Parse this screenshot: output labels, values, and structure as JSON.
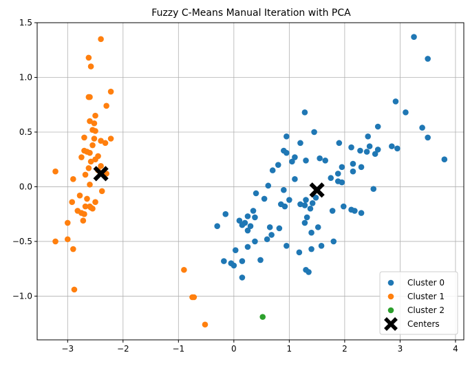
{
  "chart_data": {
    "type": "scatter",
    "title": "Fuzzy C-Means Manual Iteration with PCA",
    "xlabel": "",
    "ylabel": "",
    "xlim": [
      -3.55,
      4.15
    ],
    "ylim": [
      -1.4,
      1.5
    ],
    "xticks": [
      -3,
      -2,
      -1,
      0,
      1,
      2,
      3,
      4
    ],
    "xtick_labels": [
      "−3",
      "−2",
      "−1",
      "0",
      "1",
      "2",
      "3",
      "4"
    ],
    "yticks": [
      -1.0,
      -0.5,
      0.0,
      0.5,
      1.0,
      1.5
    ],
    "ytick_labels": [
      "−1.0",
      "−0.5",
      "0.0",
      "0.5",
      "1.0",
      "1.5"
    ],
    "grid": true,
    "legend_position": "lower-right",
    "series": [
      {
        "name": "Cluster 0",
        "color": "#1f77b4",
        "marker": "circle",
        "points": [
          [
            3.25,
            1.37
          ],
          [
            3.5,
            1.17
          ],
          [
            2.92,
            0.78
          ],
          [
            3.1,
            0.68
          ],
          [
            2.6,
            0.55
          ],
          [
            3.4,
            0.54
          ],
          [
            3.5,
            0.45
          ],
          [
            3.8,
            0.25
          ],
          [
            1.28,
            0.68
          ],
          [
            1.45,
            0.5
          ],
          [
            0.95,
            0.46
          ],
          [
            2.42,
            0.46
          ],
          [
            2.28,
            0.33
          ],
          [
            2.55,
            0.3
          ],
          [
            2.85,
            0.37
          ],
          [
            2.95,
            0.35
          ],
          [
            2.4,
            0.32
          ],
          [
            2.45,
            0.37
          ],
          [
            2.6,
            0.34
          ],
          [
            2.12,
            0.36
          ],
          [
            1.9,
            0.4
          ],
          [
            1.2,
            0.4
          ],
          [
            0.9,
            0.33
          ],
          [
            0.95,
            0.31
          ],
          [
            1.1,
            0.27
          ],
          [
            1.05,
            0.23
          ],
          [
            1.3,
            0.24
          ],
          [
            1.55,
            0.26
          ],
          [
            1.65,
            0.24
          ],
          [
            2.15,
            0.21
          ],
          [
            2.3,
            0.18
          ],
          [
            1.95,
            0.18
          ],
          [
            0.8,
            0.2
          ],
          [
            0.7,
            0.15
          ],
          [
            1.88,
            0.12
          ],
          [
            2.15,
            0.14
          ],
          [
            1.88,
            0.05
          ],
          [
            1.95,
            0.04
          ],
          [
            1.75,
            0.08
          ],
          [
            1.1,
            0.07
          ],
          [
            0.62,
            0.01
          ],
          [
            0.4,
            -0.06
          ],
          [
            0.9,
            -0.03
          ],
          [
            1.5,
            -0.03
          ],
          [
            2.52,
            -0.02
          ],
          [
            1.48,
            -0.1
          ],
          [
            1.3,
            -0.12
          ],
          [
            1.0,
            -0.12
          ],
          [
            0.55,
            -0.11
          ],
          [
            1.42,
            -0.15
          ],
          [
            1.2,
            -0.16
          ],
          [
            1.28,
            -0.17
          ],
          [
            0.85,
            -0.16
          ],
          [
            0.92,
            -0.18
          ],
          [
            1.98,
            -0.18
          ],
          [
            1.78,
            -0.22
          ],
          [
            2.12,
            -0.21
          ],
          [
            2.18,
            -0.22
          ],
          [
            2.3,
            -0.24
          ],
          [
            1.38,
            -0.2
          ],
          [
            1.32,
            -0.28
          ],
          [
            0.35,
            -0.22
          ],
          [
            0.38,
            -0.28
          ],
          [
            0.1,
            -0.31
          ],
          [
            0.25,
            -0.27
          ],
          [
            0.2,
            -0.33
          ],
          [
            0.3,
            -0.36
          ],
          [
            0.15,
            -0.35
          ],
          [
            -0.15,
            -0.25
          ],
          [
            -0.3,
            -0.36
          ],
          [
            0.65,
            -0.37
          ],
          [
            0.82,
            -0.38
          ],
          [
            1.28,
            -0.33
          ],
          [
            1.52,
            -0.37
          ],
          [
            0.25,
            -0.4
          ],
          [
            0.68,
            -0.44
          ],
          [
            1.4,
            -0.42
          ],
          [
            0.6,
            -0.48
          ],
          [
            0.38,
            -0.5
          ],
          [
            1.8,
            -0.5
          ],
          [
            0.95,
            -0.54
          ],
          [
            1.58,
            -0.54
          ],
          [
            0.25,
            -0.55
          ],
          [
            1.4,
            -0.57
          ],
          [
            0.03,
            -0.58
          ],
          [
            1.18,
            -0.6
          ],
          [
            0.48,
            -0.67
          ],
          [
            0.15,
            -0.68
          ],
          [
            -0.18,
            -0.68
          ],
          [
            -0.05,
            -0.7
          ],
          [
            0.0,
            -0.72
          ],
          [
            1.3,
            -0.76
          ],
          [
            1.35,
            -0.78
          ],
          [
            0.15,
            -0.83
          ]
        ]
      },
      {
        "name": "Cluster 1",
        "color": "#ff7f0e",
        "marker": "circle",
        "points": [
          [
            -2.4,
            1.35
          ],
          [
            -2.62,
            1.18
          ],
          [
            -2.58,
            1.1
          ],
          [
            -2.22,
            0.87
          ],
          [
            -2.62,
            0.82
          ],
          [
            -2.6,
            0.82
          ],
          [
            -2.3,
            0.74
          ],
          [
            -2.5,
            0.65
          ],
          [
            -2.6,
            0.6
          ],
          [
            -2.52,
            0.58
          ],
          [
            -2.55,
            0.52
          ],
          [
            -2.5,
            0.51
          ],
          [
            -2.7,
            0.45
          ],
          [
            -2.52,
            0.44
          ],
          [
            -2.4,
            0.42
          ],
          [
            -2.22,
            0.44
          ],
          [
            -2.32,
            0.4
          ],
          [
            -2.55,
            0.38
          ],
          [
            -2.7,
            0.33
          ],
          [
            -2.65,
            0.32
          ],
          [
            -2.6,
            0.31
          ],
          [
            -2.75,
            0.27
          ],
          [
            -2.45,
            0.28
          ],
          [
            -2.5,
            0.25
          ],
          [
            -2.58,
            0.23
          ],
          [
            -2.62,
            0.17
          ],
          [
            -2.4,
            0.19
          ],
          [
            -2.45,
            0.15
          ],
          [
            -2.3,
            0.12
          ],
          [
            -2.68,
            0.11
          ],
          [
            -3.22,
            0.14
          ],
          [
            -2.9,
            0.07
          ],
          [
            -2.6,
            0.02
          ],
          [
            -2.38,
            -0.04
          ],
          [
            -2.65,
            -0.11
          ],
          [
            -2.5,
            -0.14
          ],
          [
            -2.78,
            -0.08
          ],
          [
            -2.92,
            -0.14
          ],
          [
            -2.68,
            -0.18
          ],
          [
            -2.6,
            -0.18
          ],
          [
            -2.55,
            -0.2
          ],
          [
            -2.58,
            -0.19
          ],
          [
            -2.82,
            -0.22
          ],
          [
            -2.75,
            -0.24
          ],
          [
            -2.7,
            -0.25
          ],
          [
            -2.72,
            -0.31
          ],
          [
            -3.0,
            -0.33
          ],
          [
            -3.0,
            -0.48
          ],
          [
            -3.22,
            -0.5
          ],
          [
            -2.9,
            -0.57
          ],
          [
            -0.9,
            -0.76
          ],
          [
            -2.88,
            -0.94
          ],
          [
            -0.75,
            -1.01
          ],
          [
            -0.72,
            -1.01
          ],
          [
            -0.52,
            -1.26
          ]
        ]
      },
      {
        "name": "Cluster 2",
        "color": "#2ca02c",
        "marker": "circle",
        "points": [
          [
            0.52,
            -1.19
          ]
        ]
      },
      {
        "name": "Centers",
        "color": "#000000",
        "marker": "x",
        "points": [
          [
            -2.4,
            0.12
          ],
          [
            1.5,
            -0.03
          ]
        ]
      }
    ]
  }
}
